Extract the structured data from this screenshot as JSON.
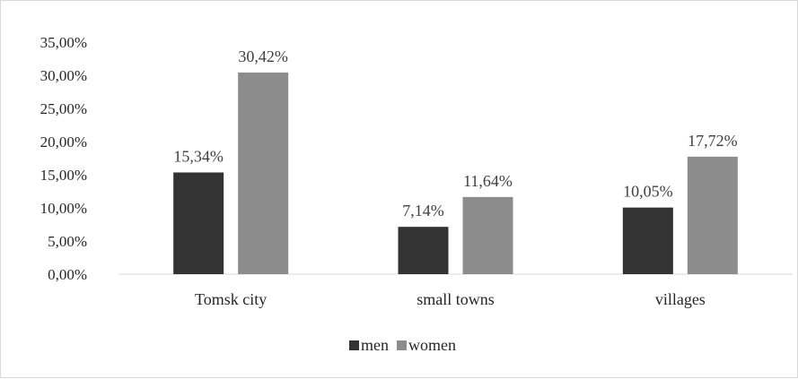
{
  "chart_data": {
    "type": "bar",
    "categories": [
      "Tomsk city",
      "small towns",
      "villages"
    ],
    "series": [
      {
        "name": "men",
        "color": "#333333",
        "values": [
          15.34,
          7.14,
          10.05
        ],
        "labels": [
          "15,34%",
          "7,14%",
          "10,05%"
        ]
      },
      {
        "name": "women",
        "color": "#8c8c8c",
        "values": [
          30.42,
          11.64,
          17.72
        ],
        "labels": [
          "30,42%",
          "11,64%",
          "17,72%"
        ]
      }
    ],
    "yticks": [
      "0,00%",
      "5,00%",
      "10,00%",
      "15,00%",
      "20,00%",
      "25,00%",
      "30,00%",
      "35,00%"
    ],
    "ylim": [
      0,
      35
    ],
    "grid": false,
    "legend": "bottom-center",
    "title": "",
    "xlabel": "",
    "ylabel": ""
  }
}
